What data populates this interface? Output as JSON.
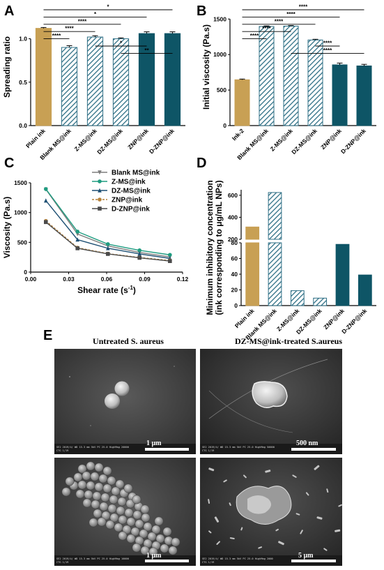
{
  "colors": {
    "plain": "#c8a054",
    "ms": "#2e6f85",
    "msLight": "#ffffff",
    "znp": "#0e5566",
    "lineBlank": "#7d7d7d",
    "lineZ": "#1f9c80",
    "lineDZ": "#1d4f73",
    "lineZNP": "#b5823b",
    "lineDZNP": "#4a4a4a"
  },
  "panels": {
    "A": {
      "letter": "A",
      "ylabel": "Spreading ratio",
      "yticks": [
        "0.0",
        "0.5",
        "1.0"
      ],
      "categories": [
        "Plain ink",
        "Blank MS@ink",
        "Z-MS@ink",
        "DZ-MS@ink",
        "ZNP@ink",
        "D-ZNP@ink"
      ],
      "values": [
        1.12,
        0.9,
        1.02,
        1.0,
        1.06,
        1.06
      ],
      "errors": [
        0.01,
        0.02,
        0.015,
        0.01,
        0.02,
        0.02
      ],
      "ylim": [
        0,
        1.35
      ],
      "styles": [
        "plain",
        "hatch",
        "hatch",
        "hatch",
        "solid",
        "solid"
      ],
      "significance": [
        {
          "from": 0,
          "to": 5,
          "label": "*"
        },
        {
          "from": 0,
          "to": 4,
          "label": "*"
        },
        {
          "from": 0,
          "to": 3,
          "label": "****"
        },
        {
          "from": 0,
          "to": 2,
          "label": "****"
        },
        {
          "from": 0,
          "to": 1,
          "label": "****"
        },
        {
          "from": 2,
          "to": 4,
          "label": "*"
        },
        {
          "from": 3,
          "to": 5,
          "label": "**"
        }
      ]
    },
    "B": {
      "letter": "B",
      "ylabel": "Initial viscosity (Pa.s)",
      "yticks": [
        "0",
        "500",
        "1000",
        "1500"
      ],
      "categories": [
        "Ink-2",
        "Blank MS@ink",
        "Z-MS@ink",
        "DZ-MS@ink",
        "ZNP@ink",
        "D-ZNP@ink"
      ],
      "values": [
        645,
        1395,
        1400,
        1205,
        855,
        840
      ],
      "errors": [
        10,
        8,
        8,
        10,
        25,
        22
      ],
      "ylim": [
        0,
        1650
      ],
      "styles": [
        "plain",
        "hatch",
        "hatch",
        "hatch",
        "solid",
        "solid"
      ],
      "significance": [
        {
          "from": 0,
          "to": 5,
          "label": "****"
        },
        {
          "from": 0,
          "to": 4,
          "label": "****"
        },
        {
          "from": 0,
          "to": 3,
          "label": "****"
        },
        {
          "from": 0,
          "to": 2,
          "label": "****"
        },
        {
          "from": 0,
          "to": 1,
          "label": "****"
        },
        {
          "from": 3,
          "to": 4,
          "label": "****"
        },
        {
          "from": 2,
          "to": 5,
          "label": "****"
        }
      ]
    },
    "C": {
      "letter": "C",
      "ylabel": "Viscosity (Pa.s)",
      "xlabel": "Shear rate (s-1)",
      "xlabelMain": "Shear rate (s",
      "xlabelSup": "-1",
      "xlabelEnd": ")",
      "xticks": [
        "0.00",
        "0.03",
        "0.06",
        "0.09",
        "0.12"
      ],
      "yticks": [
        "0",
        "500",
        "1000",
        "1500"
      ],
      "xlim": [
        0,
        0.12
      ],
      "ylim": [
        0,
        1500
      ],
      "x": [
        0.012,
        0.037,
        0.061,
        0.086,
        0.11
      ],
      "series": [
        {
          "name": "Blank MS@ink",
          "values": [
            1390,
            640,
            440,
            330,
            255
          ],
          "colorKey": "lineBlank",
          "marker": "triangle-down"
        },
        {
          "name": "Z-MS@ink",
          "values": [
            1395,
            680,
            470,
            365,
            290
          ],
          "colorKey": "lineZ",
          "marker": "circle"
        },
        {
          "name": "DZ-MS@ink",
          "values": [
            1200,
            545,
            400,
            305,
            230
          ],
          "colorKey": "lineDZ",
          "marker": "triangle-up"
        },
        {
          "name": "ZNP@ink",
          "values": [
            860,
            410,
            310,
            245,
            195
          ],
          "colorKey": "lineZNP",
          "marker": "circle",
          "dashed": true
        },
        {
          "name": "D-ZNP@ink",
          "values": [
            840,
            400,
            305,
            240,
            185
          ],
          "colorKey": "lineDZNP",
          "marker": "square"
        }
      ]
    },
    "D": {
      "letter": "D",
      "ylabel1": "Minimum inhibitory concentration",
      "ylabel2": "(ink corresponding to μg/mL NPs)",
      "yticksUpper": [
        "200",
        "400",
        "600"
      ],
      "yticksLower": [
        "0",
        "20",
        "40",
        "60",
        "80"
      ],
      "categories": [
        "Plain ink",
        "Blank MS@ink",
        "Z-MS@ink",
        "DZ-MS@ink",
        "ZNP@ink",
        "D-ZNP@ink"
      ],
      "values": [
        312,
        625,
        19,
        9.5,
        78,
        39
      ],
      "styles": [
        "plain",
        "hatch",
        "hatch",
        "hatch",
        "solid",
        "solid"
      ]
    }
  },
  "sem": {
    "letter": "E",
    "leftTitle": "Untreated S. aureus",
    "rightTitle": "DZ-MS@ink-treated S.aureus",
    "scales": [
      "1 μm",
      "500 nm",
      "1 μm",
      "5 μm"
    ]
  }
}
